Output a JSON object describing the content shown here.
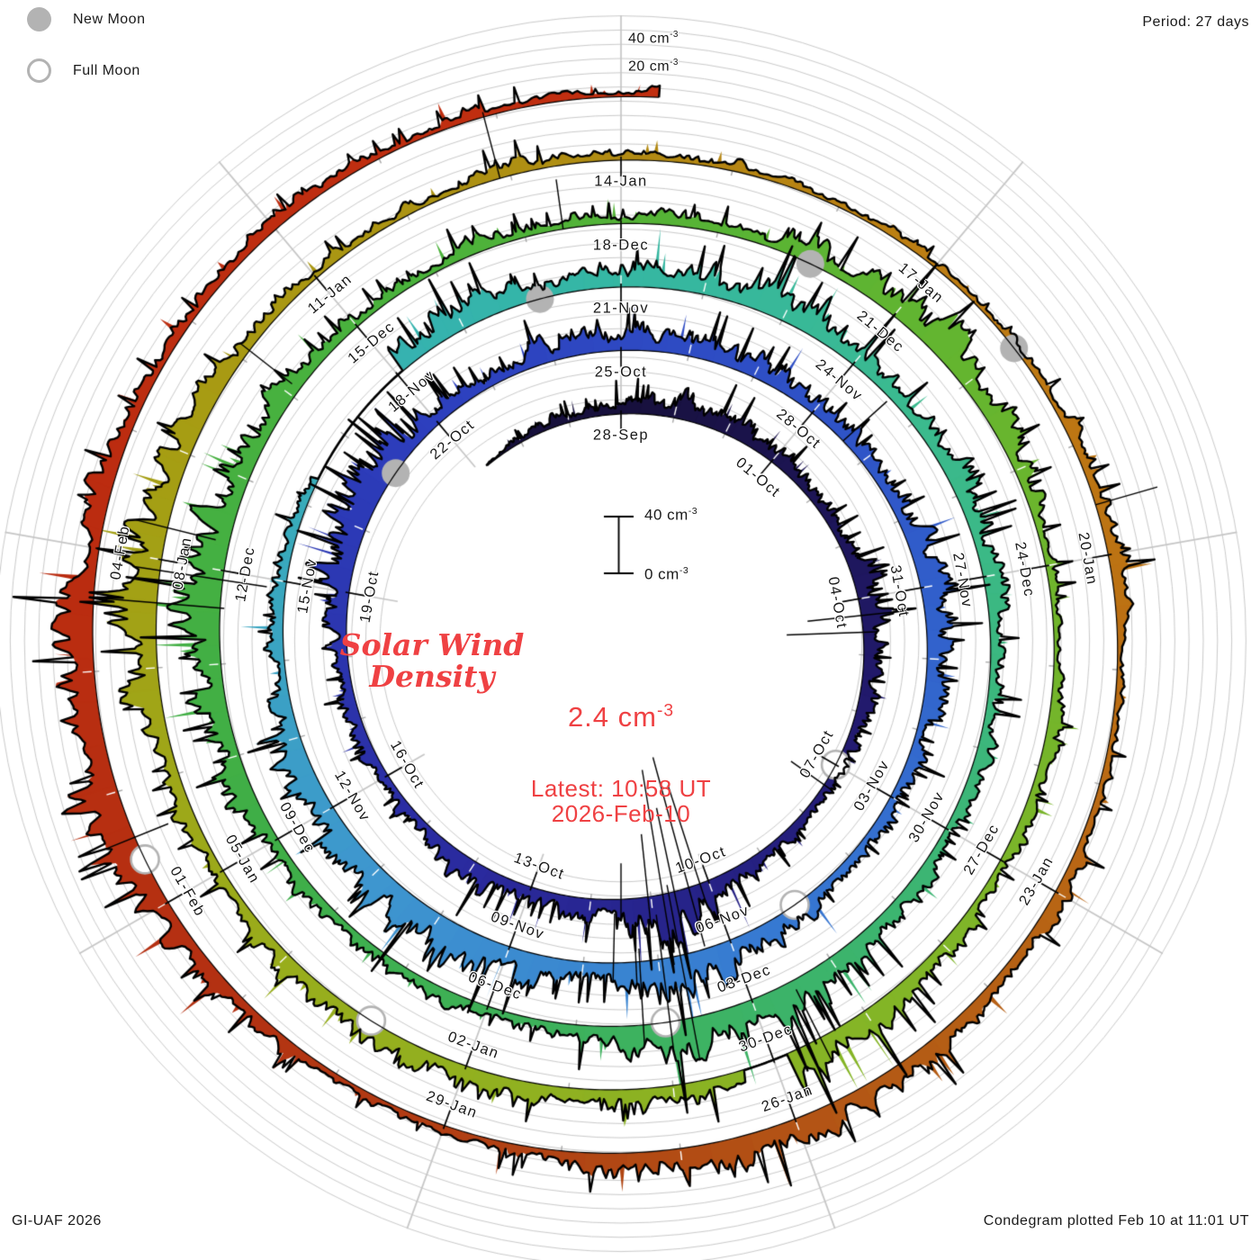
{
  "legend": {
    "new_moon": "New Moon",
    "full_moon": "Full Moon"
  },
  "header": {
    "period": "Period: 27 days"
  },
  "footer": {
    "left": "GI-UAF 2026",
    "right": "Condegram plotted Feb 10 at 11:01 UT"
  },
  "outer_axis": {
    "label_40": "40 cm",
    "label_40_exp": "-3",
    "label_20": "20 cm",
    "label_20_exp": "-3"
  },
  "scale_bar": {
    "top": "40 cm",
    "top_exp": "-3",
    "bottom": "0 cm",
    "bottom_exp": "-3"
  },
  "center": {
    "title_line1": "Solar Wind",
    "title_line2": "Density",
    "value": "2.4 cm",
    "value_exp": "-3",
    "latest_line1": "Latest: 10:58 UT",
    "latest_line2": "2026-Feb-10"
  },
  "colors": {
    "accent_red_text": "#ef4143",
    "grid": "#cbcbcb",
    "spoke": "#c6c6c6",
    "moon_gray": "#b3b3b3",
    "outline": "#000000"
  },
  "chart_data": {
    "type": "area",
    "subtype": "condegram-spiral-polar",
    "title": "Solar Wind Density",
    "units": "cm-3",
    "period_days": 27,
    "start_date_label": "28-Sep",
    "latest_value_cm3": 2.4,
    "latest_time": "10:58 UT 2026-Feb-10",
    "radial_grid_interval_cm3": 10,
    "scale_bar_cm3": [
      0,
      40
    ],
    "outer_gridline_labels_cm3": [
      20,
      40
    ],
    "date_labels": [
      {
        "d": 0,
        "text": "28-Sep"
      },
      {
        "d": 3,
        "text": "01-Oct"
      },
      {
        "d": 6,
        "text": "04-Oct"
      },
      {
        "d": 9,
        "text": "07-Oct"
      },
      {
        "d": 12,
        "text": "10-Oct"
      },
      {
        "d": 15,
        "text": "13-Oct"
      },
      {
        "d": 18,
        "text": "16-Oct"
      },
      {
        "d": 21,
        "text": "19-Oct"
      },
      {
        "d": 24,
        "text": "22-Oct"
      },
      {
        "d": 27,
        "text": "25-Oct"
      },
      {
        "d": 30,
        "text": "28-Oct"
      },
      {
        "d": 33,
        "text": "31-Oct"
      },
      {
        "d": 36,
        "text": "03-Nov"
      },
      {
        "d": 39,
        "text": "06-Nov"
      },
      {
        "d": 42,
        "text": "09-Nov"
      },
      {
        "d": 45,
        "text": "12-Nov"
      },
      {
        "d": 48,
        "text": "15-Nov"
      },
      {
        "d": 51,
        "text": "18-Nov"
      },
      {
        "d": 54,
        "text": "21-Nov"
      },
      {
        "d": 57,
        "text": "24-Nov"
      },
      {
        "d": 60,
        "text": "27-Nov"
      },
      {
        "d": 63,
        "text": "30-Nov"
      },
      {
        "d": 66,
        "text": "03-Dec"
      },
      {
        "d": 69,
        "text": "06-Dec"
      },
      {
        "d": 72,
        "text": "09-Dec"
      },
      {
        "d": 75,
        "text": "12-Dec"
      },
      {
        "d": 78,
        "text": "15-Dec"
      },
      {
        "d": 81,
        "text": "18-Dec"
      },
      {
        "d": 84,
        "text": "21-Dec"
      },
      {
        "d": 87,
        "text": "24-Dec"
      },
      {
        "d": 90,
        "text": "27-Dec"
      },
      {
        "d": 93,
        "text": "30-Dec"
      },
      {
        "d": 96,
        "text": "02-Jan"
      },
      {
        "d": 99,
        "text": "05-Jan"
      },
      {
        "d": 102,
        "text": "08-Jan"
      },
      {
        "d": 105,
        "text": "11-Jan"
      },
      {
        "d": 108,
        "text": "14-Jan"
      },
      {
        "d": 111,
        "text": "17-Jan"
      },
      {
        "d": 114,
        "text": "20-Jan"
      },
      {
        "d": 117,
        "text": "23-Jan"
      },
      {
        "d": 120,
        "text": "26-Jan"
      },
      {
        "d": 123,
        "text": "29-Jan"
      },
      {
        "d": 126,
        "text": "01-Feb"
      },
      {
        "d": 129,
        "text": "04-Feb"
      }
    ],
    "daily_density_cm3": [
      14,
      20,
      16,
      11,
      9,
      13,
      22,
      18,
      10,
      8,
      7,
      12,
      26,
      30,
      18,
      13,
      16,
      10,
      9,
      14,
      12,
      22,
      30,
      24,
      16,
      11,
      15,
      18,
      14,
      20,
      16,
      11,
      17,
      24,
      18,
      12,
      9,
      12,
      16,
      22,
      26,
      18,
      24,
      30,
      28,
      30,
      18,
      11,
      13,
      8,
      6,
      16,
      22,
      15,
      18,
      21,
      26,
      18,
      13,
      18,
      15,
      11,
      13,
      9,
      13,
      21,
      34,
      26,
      15,
      11,
      9,
      12,
      16,
      19,
      26,
      30,
      21,
      13,
      11,
      9,
      11,
      8,
      10,
      15,
      25,
      19,
      13,
      9,
      7,
      9,
      10,
      13,
      21,
      26,
      17,
      11,
      15,
      21,
      15,
      10,
      13,
      25,
      30,
      21,
      13,
      9,
      7,
      9,
      6,
      7,
      5,
      6,
      7,
      9,
      14,
      5,
      7,
      9,
      10,
      15,
      21,
      17,
      10,
      9,
      7,
      13,
      21,
      38,
      25,
      17,
      12,
      9,
      10,
      7,
      9,
      6
    ],
    "new_moon_days": [
      23,
      53,
      83,
      112
    ],
    "full_moon_days": [
      9,
      38,
      67,
      97,
      126.4
    ],
    "data_gap_day_ranges": [
      [
        49.35,
        51.1
      ],
      [
        92.85,
        93.3
      ]
    ],
    "artifact_spikes": [
      [
        6.3,
        60,
        0
      ],
      [
        6.6,
        85,
        0
      ],
      [
        9.4,
        45,
        0
      ],
      [
        12.15,
        115,
        0
      ],
      [
        12.35,
        150,
        25
      ],
      [
        12.6,
        95,
        0
      ],
      [
        12.8,
        140,
        30
      ],
      [
        13.05,
        70,
        0
      ],
      [
        13.5,
        40,
        0
      ],
      [
        30.6,
        0,
        45
      ],
      [
        40.3,
        40,
        0
      ],
      [
        40.6,
        55,
        0
      ],
      [
        66.7,
        150,
        0
      ],
      [
        66.95,
        120,
        0
      ],
      [
        67.25,
        85,
        0
      ],
      [
        80.4,
        0,
        48
      ],
      [
        92.5,
        60,
        0
      ],
      [
        101.6,
        75,
        0
      ],
      [
        101.9,
        120,
        0
      ],
      [
        102.3,
        55,
        0
      ],
      [
        104.1,
        60,
        0
      ],
      [
        106.9,
        0,
        55
      ],
      [
        113.55,
        0,
        48
      ],
      [
        126.6,
        40,
        0
      ]
    ],
    "color_stops_by_day": [
      [
        -3,
        "#17103c"
      ],
      [
        0,
        "#17103c"
      ],
      [
        8,
        "#221a6e"
      ],
      [
        16,
        "#2a2a9e"
      ],
      [
        24,
        "#2d3fbe"
      ],
      [
        31,
        "#2f55c8"
      ],
      [
        38,
        "#3677d2"
      ],
      [
        44,
        "#3e96cf"
      ],
      [
        49,
        "#38acba"
      ],
      [
        53,
        "#34b6a8"
      ],
      [
        58,
        "#3bba8e"
      ],
      [
        65,
        "#3cb46c"
      ],
      [
        72,
        "#3fae47"
      ],
      [
        79,
        "#4bb23b"
      ],
      [
        85,
        "#65b52f"
      ],
      [
        92,
        "#84b526"
      ],
      [
        98,
        "#99ad1c"
      ],
      [
        103,
        "#a69d13"
      ],
      [
        107,
        "#ae9013"
      ],
      [
        111,
        "#bd7d13"
      ],
      [
        115,
        "#bc6f13"
      ],
      [
        119,
        "#b45b15"
      ],
      [
        122,
        "#b14414"
      ],
      [
        125,
        "#b33112"
      ],
      [
        129,
        "#bb2c10"
      ],
      [
        136,
        "#c22f10"
      ]
    ]
  }
}
